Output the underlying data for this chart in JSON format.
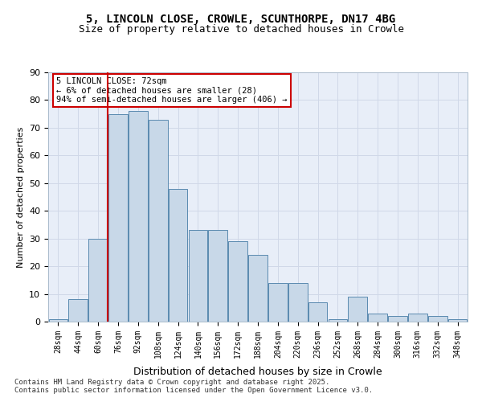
{
  "title_line1": "5, LINCOLN CLOSE, CROWLE, SCUNTHORPE, DN17 4BG",
  "title_line2": "Size of property relative to detached houses in Crowle",
  "xlabel": "Distribution of detached houses by size in Crowle",
  "ylabel": "Number of detached properties",
  "bin_labels": [
    "28sqm",
    "44sqm",
    "60sqm",
    "76sqm",
    "92sqm",
    "108sqm",
    "124sqm",
    "140sqm",
    "156sqm",
    "172sqm",
    "188sqm",
    "204sqm",
    "220sqm",
    "236sqm",
    "252sqm",
    "268sqm",
    "284sqm",
    "300sqm",
    "316sqm",
    "332sqm",
    "348sqm"
  ],
  "bar_values": [
    1,
    8,
    30,
    75,
    76,
    73,
    48,
    33,
    33,
    29,
    24,
    14,
    14,
    7,
    1,
    9,
    3,
    2,
    3,
    2,
    1
  ],
  "bar_color": "#c8d8e8",
  "bar_edge_color": "#5a8ab0",
  "grid_color": "#d0d8e8",
  "background_color": "#e8eef8",
  "vline_x": 2,
  "vline_color": "#cc0000",
  "annotation_text": "5 LINCOLN CLOSE: 72sqm\n← 6% of detached houses are smaller (28)\n94% of semi-detached houses are larger (406) →",
  "annotation_box_color": "#ffffff",
  "annotation_box_edge": "#cc0000",
  "footer_text": "Contains HM Land Registry data © Crown copyright and database right 2025.\nContains public sector information licensed under the Open Government Licence v3.0.",
  "ylim": [
    0,
    90
  ],
  "yticks": [
    0,
    10,
    20,
    30,
    40,
    50,
    60,
    70,
    80,
    90
  ]
}
